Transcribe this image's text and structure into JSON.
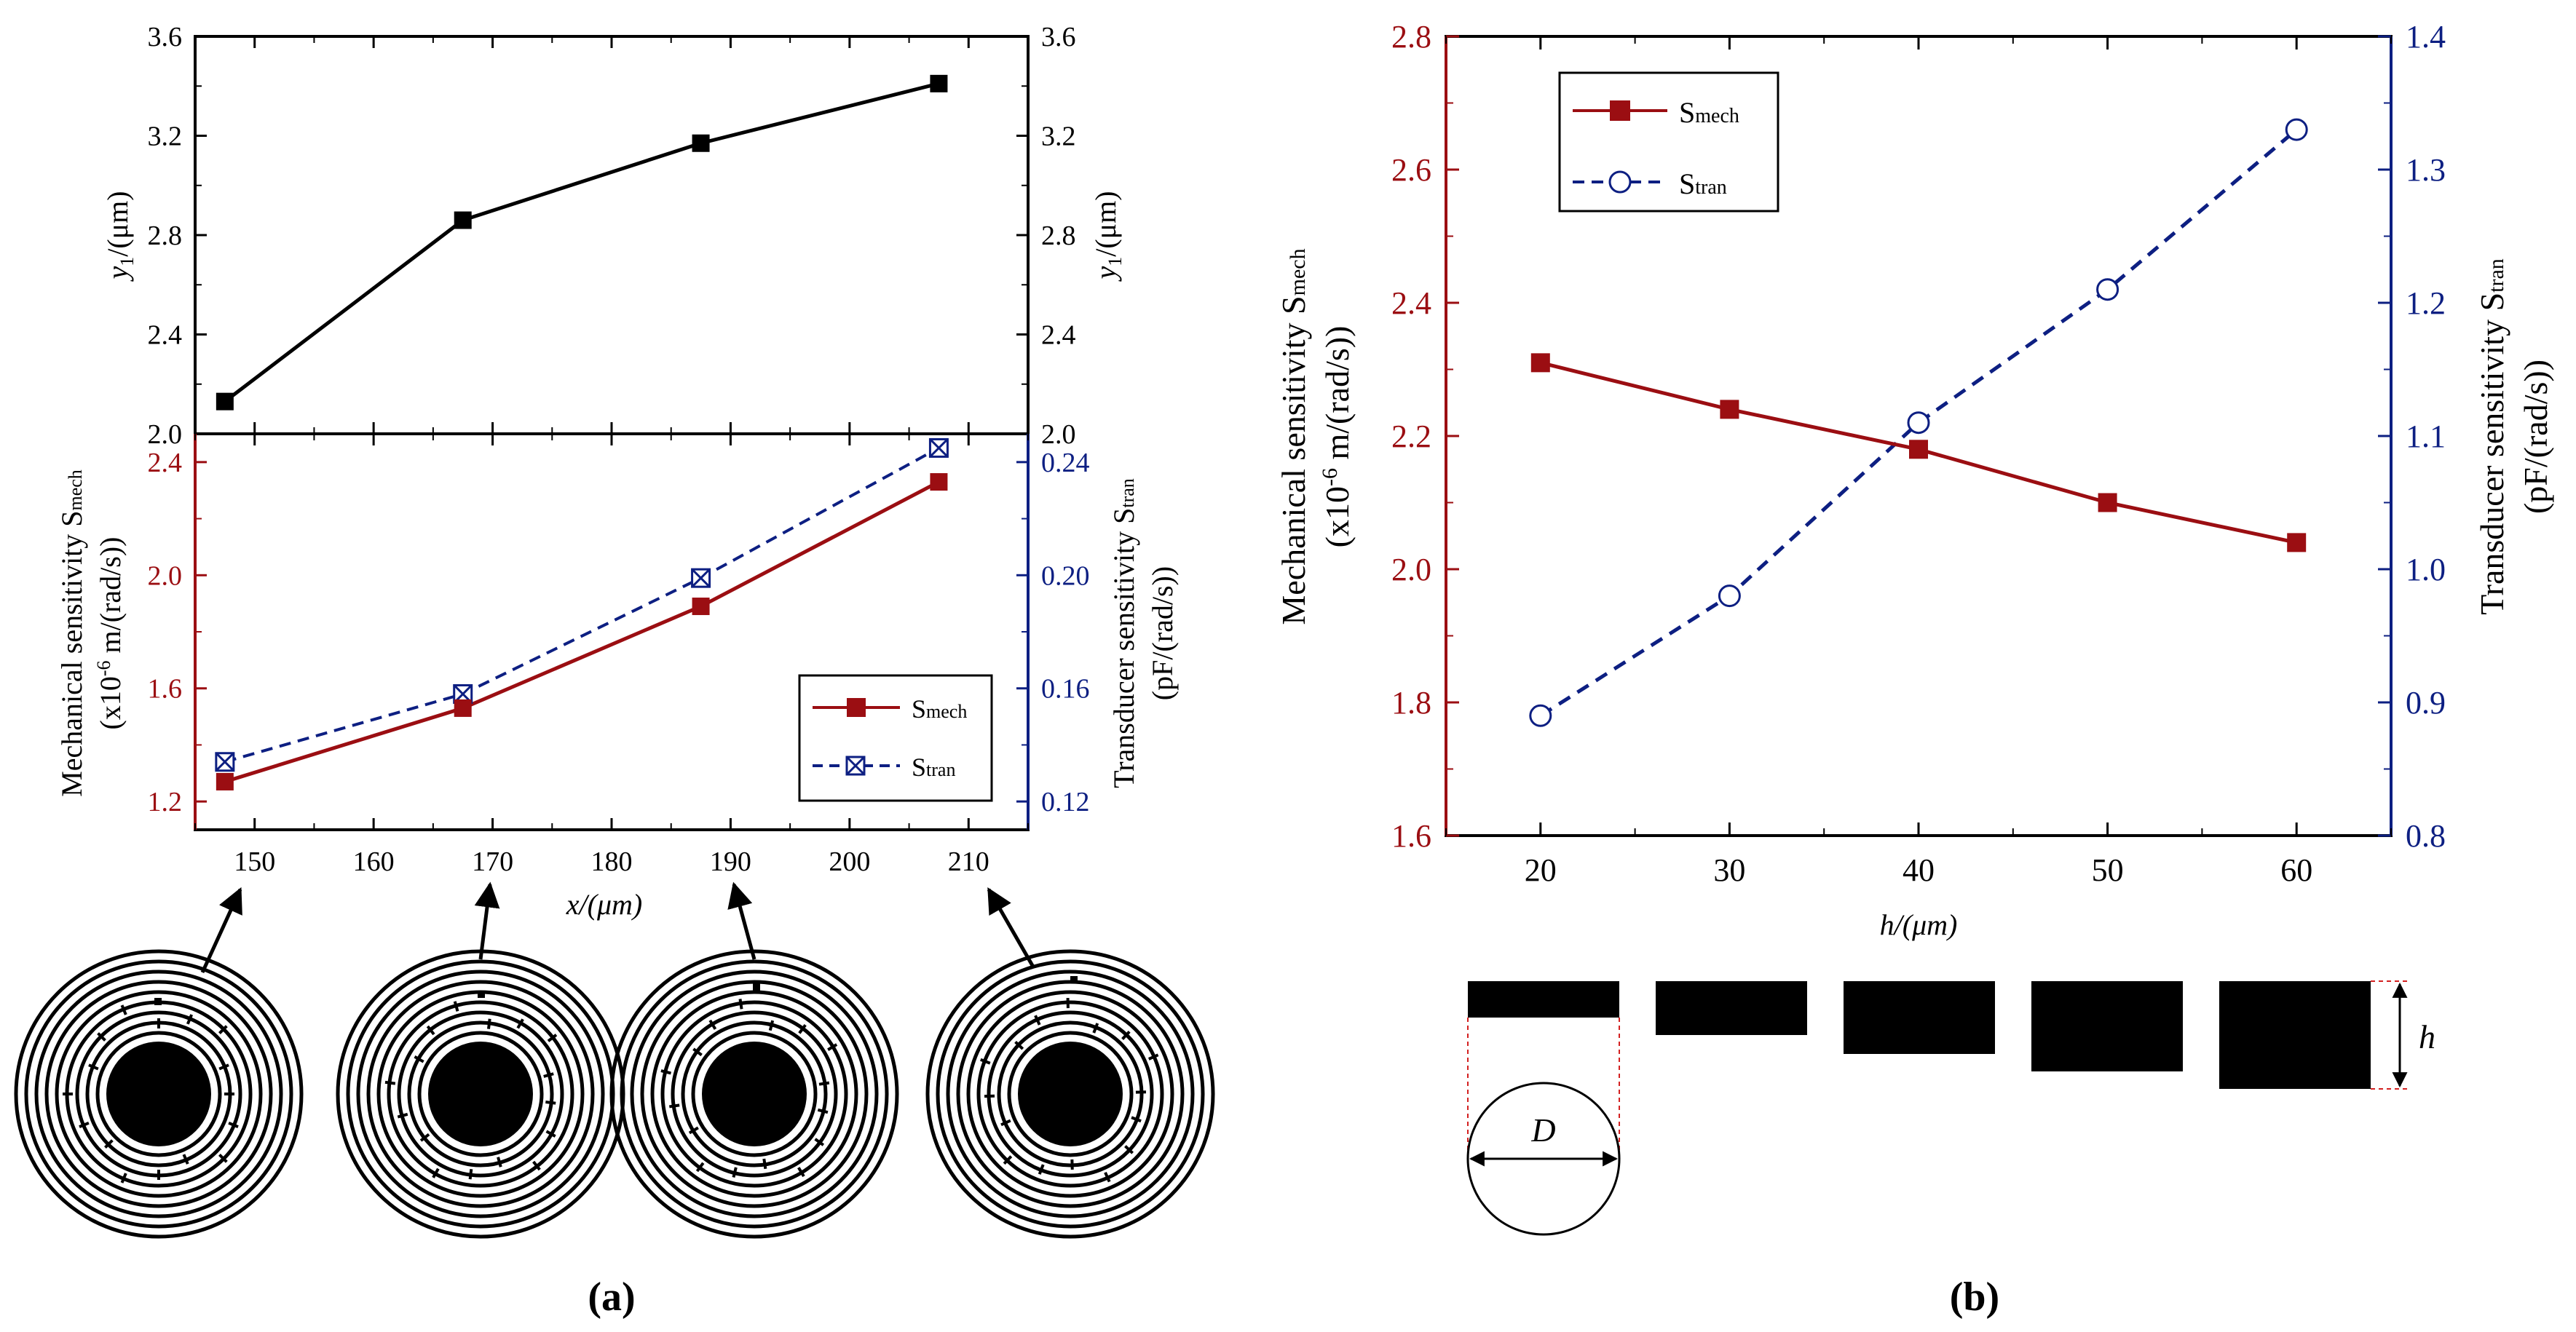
{
  "colors": {
    "mech": "#9b0e12",
    "tran": "#0d1f82",
    "black": "#000000"
  },
  "panel_labels": {
    "a": "(a)",
    "b": "(b)"
  },
  "legend": {
    "S_main": "S",
    "mech_sub": "mech",
    "tran_sub": "tran"
  },
  "a_top": {
    "ylabel_left": "y",
    "ylabel_sub": "1",
    "ylabel_unit": "/(μm)",
    "yticks": [
      "2.0",
      "2.4",
      "2.8",
      "3.2",
      "3.6"
    ]
  },
  "a_bottom": {
    "xlabel": "x/(μm)",
    "xticks": [
      "150",
      "160",
      "170",
      "180",
      "190",
      "200",
      "210"
    ],
    "yticks_left": [
      "1.2",
      "1.6",
      "2.0",
      "2.4"
    ],
    "yticks_right": [
      "0.12",
      "0.16",
      "0.20",
      "0.24"
    ],
    "ylabel_left_1": "Mechanical sensitivity S",
    "ylabel_left_sub": "mech",
    "ylabel_left_2": "(x10",
    "ylabel_left_exp": "-6",
    "ylabel_left_3": " m/(rad/s))",
    "ylabel_right_1": "Transducer sensitivity S",
    "ylabel_right_sub": "tran",
    "ylabel_right_2": "(pF/(rad/s))"
  },
  "b": {
    "xlabel": "h/(μm)",
    "xticks": [
      "20",
      "30",
      "40",
      "50",
      "60"
    ],
    "yticks_left": [
      "1.6",
      "1.8",
      "2.0",
      "2.2",
      "2.4",
      "2.6",
      "2.8"
    ],
    "yticks_right": [
      "0.8",
      "0.9",
      "1.0",
      "1.1",
      "1.2",
      "1.3",
      "1.4"
    ],
    "ylabel_left_1": "Mechanical sensitivity S",
    "ylabel_left_sub": "mech",
    "ylabel_left_2": "(x10",
    "ylabel_left_exp": "-6",
    "ylabel_left_3": " m/(rad/s))",
    "ylabel_right_1": "Transducer sensitivity S",
    "ylabel_right_sub": "tran",
    "ylabel_right_2": "(pF/(rad/s))",
    "dim_D": "D",
    "dim_h": "h"
  },
  "chart_data": [
    {
      "type": "line",
      "title": "",
      "xlabel": "x/(μm)",
      "ylabel": "y1/(μm)",
      "x": [
        147.5,
        167.5,
        187.5,
        207.5
      ],
      "ylim": [
        2.0,
        3.6
      ],
      "series": [
        {
          "name": "y1",
          "values": [
            2.13,
            2.86,
            3.17,
            3.41
          ]
        }
      ]
    },
    {
      "type": "line",
      "title": "",
      "xlabel": "x/(μm)",
      "ylabel": "Mechanical sensitivity Smech (x10^-6 m/(rad/s))",
      "ylabel_right": "Transducer sensitivity Stran (pF/(rad/s))",
      "x": [
        147.5,
        167.5,
        187.5,
        207.5
      ],
      "xlim": [
        145,
        215
      ],
      "ylim": [
        1.1,
        2.5
      ],
      "ylim_right": [
        0.11,
        0.25
      ],
      "legend_position": "bottom-right",
      "series": [
        {
          "name": "Smech",
          "axis": "left",
          "values": [
            1.27,
            1.53,
            1.89,
            2.33
          ]
        },
        {
          "name": "Stran",
          "axis": "right",
          "values": [
            0.134,
            0.158,
            0.199,
            0.245
          ]
        }
      ]
    },
    {
      "type": "line",
      "title": "",
      "xlabel": "h/(μm)",
      "ylabel": "Mechanical sensitivity Smech (x10^-6 m/(rad/s))",
      "ylabel_right": "Transducer sensitivity Stran (pF/(rad/s))",
      "x": [
        20,
        30,
        40,
        50,
        60
      ],
      "xlim": [
        15,
        65
      ],
      "ylim": [
        1.6,
        2.8
      ],
      "ylim_right": [
        0.8,
        1.4
      ],
      "legend_position": "top-left",
      "series": [
        {
          "name": "Smech",
          "axis": "left",
          "values": [
            2.31,
            2.24,
            2.18,
            2.1,
            2.04
          ]
        },
        {
          "name": "Stran",
          "axis": "right",
          "values": [
            0.89,
            0.98,
            1.11,
            1.21,
            1.33
          ]
        }
      ]
    }
  ]
}
